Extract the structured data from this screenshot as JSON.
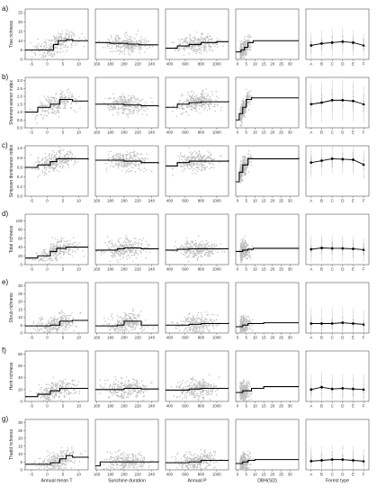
{
  "figure": {
    "x_titles": [
      "Annual mean T",
      "Sunshine duration",
      "Annual P",
      "DBH(SD)",
      "Forest type"
    ],
    "x_ticks": [
      [
        "-5",
        "0",
        "5",
        "10"
      ],
      [
        "160",
        "180",
        "200",
        "220",
        "240"
      ],
      [
        "400",
        "600",
        "800",
        "1000"
      ],
      [
        "0",
        "5",
        "10",
        "15",
        "20",
        "25",
        "30"
      ],
      [
        "A",
        "B",
        "C",
        "D",
        "E",
        "F"
      ]
    ],
    "x_ranges": [
      [
        -7,
        13
      ],
      [
        158,
        250
      ],
      [
        350,
        1150
      ],
      [
        -1,
        35
      ],
      [
        0.5,
        6.5
      ]
    ],
    "colors": {
      "points": "#bdbdbd",
      "fit": "#000000"
    }
  },
  "chart_data": [
    {
      "type": "scatter",
      "panel": "a)",
      "ylabel": "Tree richness",
      "yticks": [
        "0",
        "5",
        "10",
        "15",
        "20",
        "25"
      ],
      "ylim": [
        0,
        27
      ],
      "step_fits": [
        [
          [
            -7,
            5
          ],
          [
            1,
            5
          ],
          [
            2,
            8
          ],
          [
            3.5,
            10
          ],
          [
            6,
            10.5
          ],
          [
            8,
            10
          ],
          [
            13,
            10
          ]
        ],
        [
          [
            158,
            9
          ],
          [
            180,
            8.6
          ],
          [
            205,
            8.2
          ],
          [
            222,
            7.8
          ],
          [
            250,
            7.8
          ]
        ],
        [
          [
            350,
            6
          ],
          [
            500,
            7.2
          ],
          [
            650,
            8
          ],
          [
            800,
            9
          ],
          [
            1000,
            9.5
          ],
          [
            1150,
            9.5
          ]
        ],
        [
          [
            -1,
            4
          ],
          [
            2,
            5
          ],
          [
            4,
            6.5
          ],
          [
            6,
            9
          ],
          [
            9,
            10
          ],
          [
            12,
            10
          ],
          [
            35,
            10
          ]
        ]
      ],
      "forest_means": [
        7.5,
        8.5,
        9,
        9.5,
        9,
        7.5
      ],
      "forest_err": [
        7,
        7,
        7.5,
        7.5,
        7,
        6.5
      ]
    },
    {
      "type": "scatter",
      "panel": "b)",
      "ylabel": "Shannon-wiener index",
      "yticks": [
        "0.0",
        "0.5",
        "1.0",
        "1.5",
        "2.0",
        "2.5",
        "3.0"
      ],
      "ylim": [
        0,
        3.2
      ],
      "step_fits": [
        [
          [
            -7,
            1
          ],
          [
            -3,
            1.3
          ],
          [
            1,
            1.5
          ],
          [
            4,
            1.8
          ],
          [
            8,
            1.7
          ],
          [
            13,
            1.7
          ]
        ],
        [
          [
            158,
            1.5
          ],
          [
            190,
            1.5
          ],
          [
            200,
            1.45
          ],
          [
            225,
            1.4
          ],
          [
            250,
            1.35
          ]
        ],
        [
          [
            350,
            1.3
          ],
          [
            500,
            1.5
          ],
          [
            650,
            1.6
          ],
          [
            800,
            1.65
          ],
          [
            1150,
            1.7
          ]
        ],
        [
          [
            -1,
            0.5
          ],
          [
            1,
            0.9
          ],
          [
            3,
            1.3
          ],
          [
            5,
            1.8
          ],
          [
            8,
            1.9
          ],
          [
            35,
            1.9
          ]
        ]
      ],
      "forest_means": [
        1.5,
        1.6,
        1.75,
        1.75,
        1.7,
        1.5
      ],
      "forest_err": [
        1.3,
        1.3,
        1.3,
        1.3,
        1.3,
        1.2
      ]
    },
    {
      "type": "scatter",
      "panel": "c)",
      "ylabel": "Simpson dominance index",
      "yticks": [
        "0.0",
        "0.2",
        "0.4",
        "0.6",
        "0.8",
        "1.0"
      ],
      "ylim": [
        0,
        1.05
      ],
      "step_fits": [
        [
          [
            -7,
            0.6
          ],
          [
            -3,
            0.65
          ],
          [
            1,
            0.72
          ],
          [
            3,
            0.78
          ],
          [
            13,
            0.76
          ]
        ],
        [
          [
            158,
            0.75
          ],
          [
            200,
            0.73
          ],
          [
            225,
            0.7
          ],
          [
            250,
            0.68
          ]
        ],
        [
          [
            350,
            0.63
          ],
          [
            500,
            0.7
          ],
          [
            650,
            0.73
          ],
          [
            1150,
            0.75
          ]
        ],
        [
          [
            -1,
            0.3
          ],
          [
            1,
            0.5
          ],
          [
            3,
            0.65
          ],
          [
            6,
            0.78
          ],
          [
            35,
            0.8
          ]
        ]
      ],
      "forest_means": [
        0.7,
        0.74,
        0.78,
        0.77,
        0.76,
        0.66
      ],
      "forest_err": [
        0.3,
        0.3,
        0.3,
        0.3,
        0.3,
        0.3
      ]
    },
    {
      "type": "scatter",
      "panel": "d)",
      "ylabel": "Total richness",
      "yticks": [
        "0",
        "20",
        "40",
        "60",
        "80",
        "100"
      ],
      "ylim": [
        0,
        115
      ],
      "step_fits": [
        [
          [
            -7,
            15
          ],
          [
            -3,
            20
          ],
          [
            1,
            30
          ],
          [
            3,
            37
          ],
          [
            6,
            40
          ],
          [
            13,
            40
          ]
        ],
        [
          [
            158,
            33
          ],
          [
            190,
            36
          ],
          [
            200,
            38
          ],
          [
            225,
            36
          ],
          [
            250,
            35
          ]
        ],
        [
          [
            350,
            33
          ],
          [
            500,
            35
          ],
          [
            650,
            36
          ],
          [
            1150,
            36
          ]
        ],
        [
          [
            -1,
            30
          ],
          [
            3,
            33
          ],
          [
            6,
            35
          ],
          [
            9,
            37
          ],
          [
            35,
            38
          ]
        ]
      ],
      "forest_means": [
        35,
        38,
        37,
        37,
        36,
        34
      ],
      "forest_err": [
        30,
        30,
        30,
        30,
        30,
        28
      ]
    },
    {
      "type": "scatter",
      "panel": "e)",
      "ylabel": "Shrub richness",
      "yticks": [
        "0",
        "5",
        "10",
        "15",
        "20",
        "25",
        "30"
      ],
      "ylim": [
        0,
        32
      ],
      "step_fits": [
        [
          [
            -7,
            4.5
          ],
          [
            1,
            5
          ],
          [
            4,
            7.5
          ],
          [
            8,
            8
          ],
          [
            13,
            8
          ]
        ],
        [
          [
            158,
            4.5
          ],
          [
            190,
            5
          ],
          [
            200,
            7.5
          ],
          [
            215,
            7.5
          ],
          [
            225,
            5
          ],
          [
            250,
            5
          ]
        ],
        [
          [
            350,
            5
          ],
          [
            650,
            5.5
          ],
          [
            800,
            6
          ],
          [
            1150,
            6.5
          ]
        ],
        [
          [
            -1,
            4
          ],
          [
            3,
            5
          ],
          [
            6,
            6
          ],
          [
            15,
            6.5
          ],
          [
            35,
            6.5
          ]
        ]
      ],
      "forest_means": [
        6,
        6,
        6,
        6.5,
        6,
        5.5
      ],
      "forest_err": [
        10,
        10,
        10,
        10,
        10,
        9
      ]
    },
    {
      "type": "scatter",
      "panel": "f)",
      "ylabel": "Herb richness",
      "yticks": [
        "0",
        "20",
        "40",
        "60",
        "80"
      ],
      "ylim": [
        0,
        85
      ],
      "step_fits": [
        [
          [
            -7,
            8
          ],
          [
            -3,
            12
          ],
          [
            1,
            18
          ],
          [
            4,
            22
          ],
          [
            13,
            22
          ]
        ],
        [
          [
            158,
            20
          ],
          [
            200,
            22
          ],
          [
            225,
            21
          ],
          [
            250,
            20
          ]
        ],
        [
          [
            350,
            19
          ],
          [
            650,
            21
          ],
          [
            800,
            22
          ],
          [
            1150,
            22
          ]
        ],
        [
          [
            -1,
            15
          ],
          [
            3,
            18
          ],
          [
            8,
            22
          ],
          [
            15,
            25
          ],
          [
            35,
            25
          ]
        ]
      ],
      "forest_means": [
        20,
        24,
        21,
        22,
        21,
        20
      ],
      "forest_err": [
        25,
        25,
        25,
        25,
        25,
        25
      ]
    },
    {
      "type": "scatter",
      "panel": "g)",
      "ylabel": "Thatid richness",
      "yticks": [
        "0",
        "5",
        "10",
        "15",
        "20",
        "25",
        "30"
      ],
      "ylim": [
        0,
        32
      ],
      "step_fits": [
        [
          [
            -7,
            3.5
          ],
          [
            1,
            4.5
          ],
          [
            4,
            7
          ],
          [
            6,
            9
          ],
          [
            8,
            8
          ],
          [
            13,
            7.5
          ]
        ],
        [
          [
            158,
            2.5
          ],
          [
            165,
            5
          ],
          [
            250,
            5.5
          ]
        ],
        [
          [
            350,
            4.5
          ],
          [
            650,
            5
          ],
          [
            800,
            6
          ],
          [
            1150,
            6
          ]
        ],
        [
          [
            -1,
            4
          ],
          [
            3,
            5
          ],
          [
            6,
            6
          ],
          [
            10,
            6.5
          ],
          [
            35,
            6.5
          ]
        ]
      ],
      "forest_means": [
        5.5,
        6,
        6.5,
        6.5,
        6,
        5.5
      ],
      "forest_err": [
        9,
        9,
        9,
        9,
        9,
        8
      ]
    }
  ]
}
